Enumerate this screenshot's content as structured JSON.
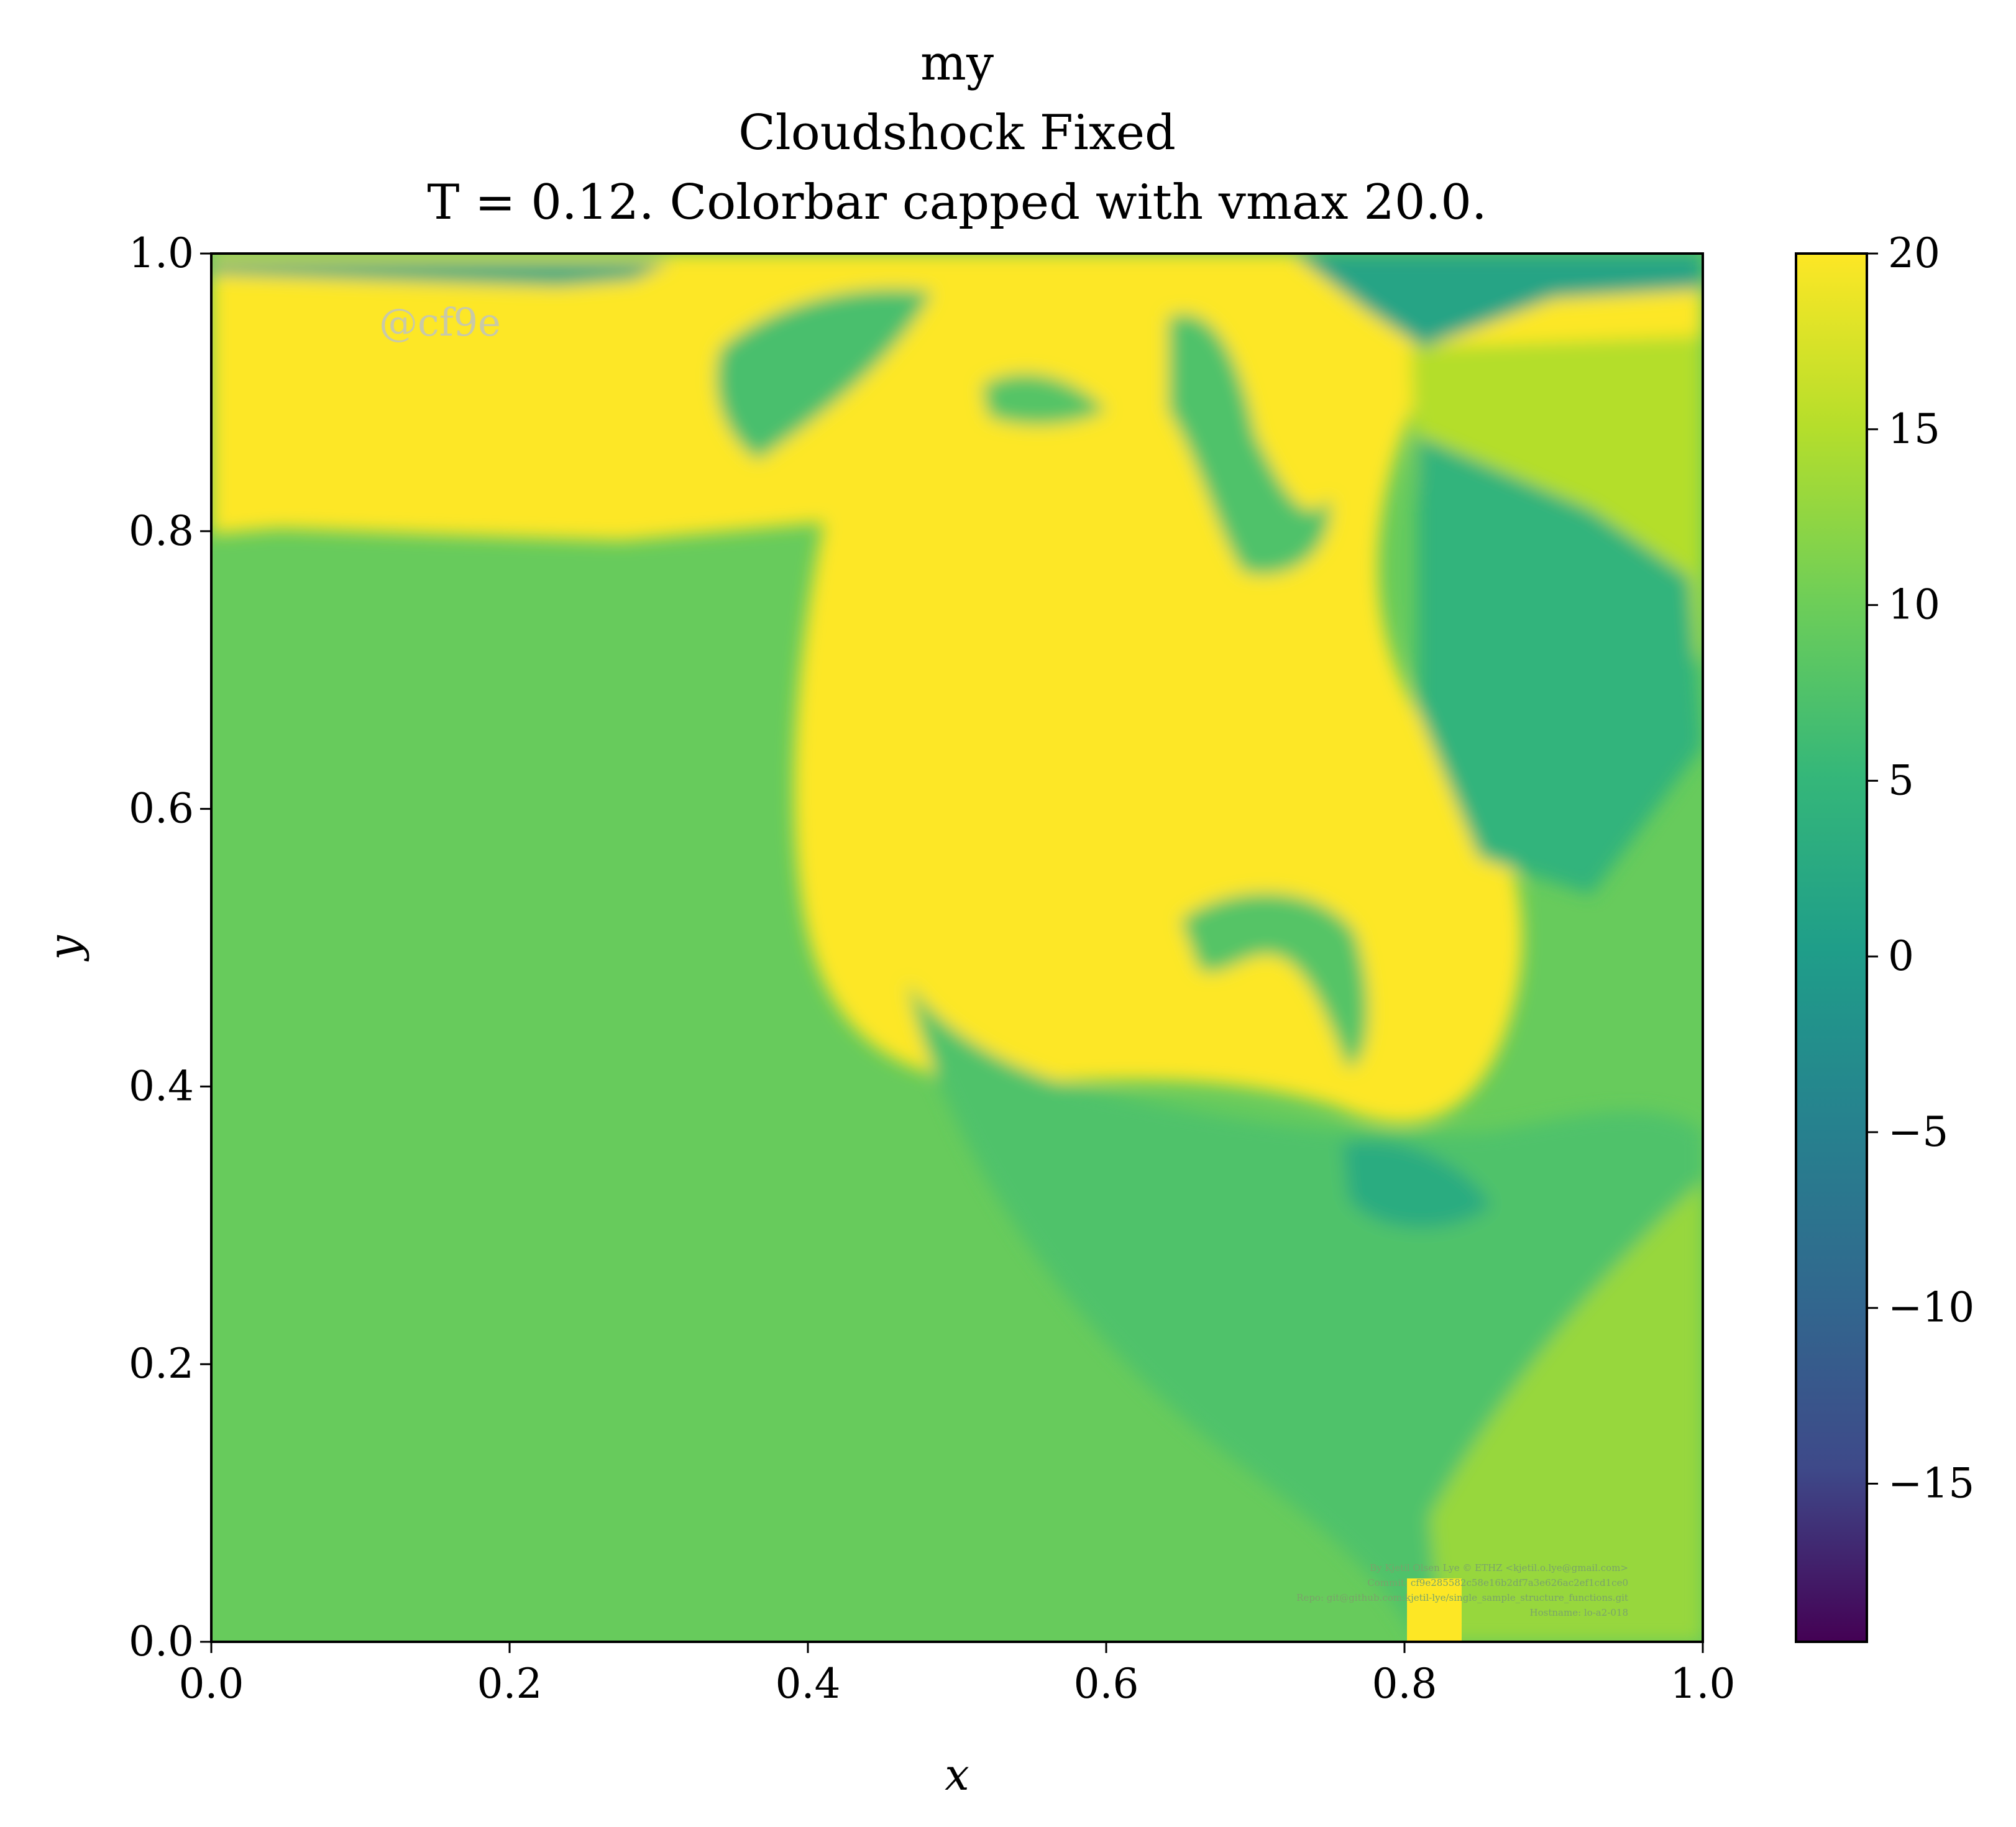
{
  "chart_data": {
    "type": "heatmap",
    "title_lines": [
      "my",
      "Cloudshock Fixed",
      "T = 0.12. Colorbar capped with vmax 20.0."
    ],
    "xlabel": "x",
    "ylabel": "y",
    "xlim": [
      0.0,
      1.0
    ],
    "ylim": [
      0.0,
      1.0
    ],
    "x_ticks": [
      "0.0",
      "0.2",
      "0.4",
      "0.6",
      "0.8",
      "1.0"
    ],
    "y_ticks": [
      "0.0",
      "0.2",
      "0.4",
      "0.6",
      "0.8",
      "1.0"
    ],
    "colormap": "viridis",
    "colorbar": {
      "vmin": -19.5,
      "vmax": 20.0,
      "ticks": [
        20,
        15,
        10,
        5,
        0,
        -5,
        -10,
        -15
      ],
      "tick_labels": [
        "20",
        "15",
        "10",
        "5",
        "0",
        "−5",
        "−10",
        "−15"
      ]
    },
    "field_regions": [
      {
        "name": "lower-left-region",
        "value": 9.5
      },
      {
        "name": "top-band",
        "value": 20.0
      },
      {
        "name": "top-left-strip",
        "value": 2.0
      },
      {
        "name": "top-right-corner",
        "value": 1.5
      },
      {
        "name": "bubble",
        "value": 20.0
      },
      {
        "name": "right-plume",
        "value": 15.0
      },
      {
        "name": "right-core",
        "value": 4.5
      },
      {
        "name": "lower-right-wedge",
        "value": 7.5
      },
      {
        "name": "bottom-right-tail",
        "value": 13.0
      },
      {
        "name": "bottom-right-yellow",
        "value": 20.0
      },
      {
        "name": "vortex-left",
        "value": 7.0
      },
      {
        "name": "vortex-mid",
        "value": 8.0
      },
      {
        "name": "vortex-right",
        "value": 7.5
      },
      {
        "name": "inner-vortex",
        "value": 8.0
      },
      {
        "name": "lower-dark-spot",
        "value": 3.0
      }
    ],
    "annotations": {
      "watermark": "@cf9e",
      "credits": [
        "By Kjetil Olsen Lye © ETHZ <kjetil.o.lye@gmail.com>",
        "Commit: cf9e285582c58e16b2df7a3e626ac2ef1cd1ce0",
        "Repo: git@github.com:kjetil-lye/single_sample_structure_functions.git",
        "Hostname: lo-a2-018"
      ]
    }
  }
}
